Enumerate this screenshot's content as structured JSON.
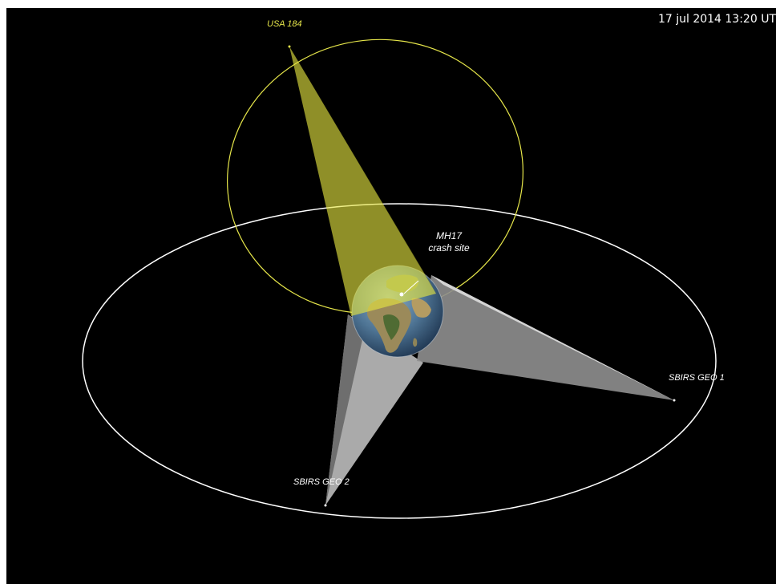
{
  "timestamp": "17 jul 2014  13:20 UT",
  "satellites": {
    "usa184": {
      "label": "USA 184",
      "color": "#e6e64a"
    },
    "geo1": {
      "label": "SBIRS GEO 1",
      "color": "#ffffff"
    },
    "geo2": {
      "label": "SBIRS GEO 2",
      "color": "#ffffff"
    }
  },
  "crash_site": {
    "line1": "MH17",
    "line2": "crash site"
  },
  "colors": {
    "background": "#000000",
    "usa184_orbit": "#e6e64a",
    "geo_orbit": "#ffffff",
    "usa184_beam": "#e6e640",
    "geo_beam": "#bdbdbd"
  }
}
